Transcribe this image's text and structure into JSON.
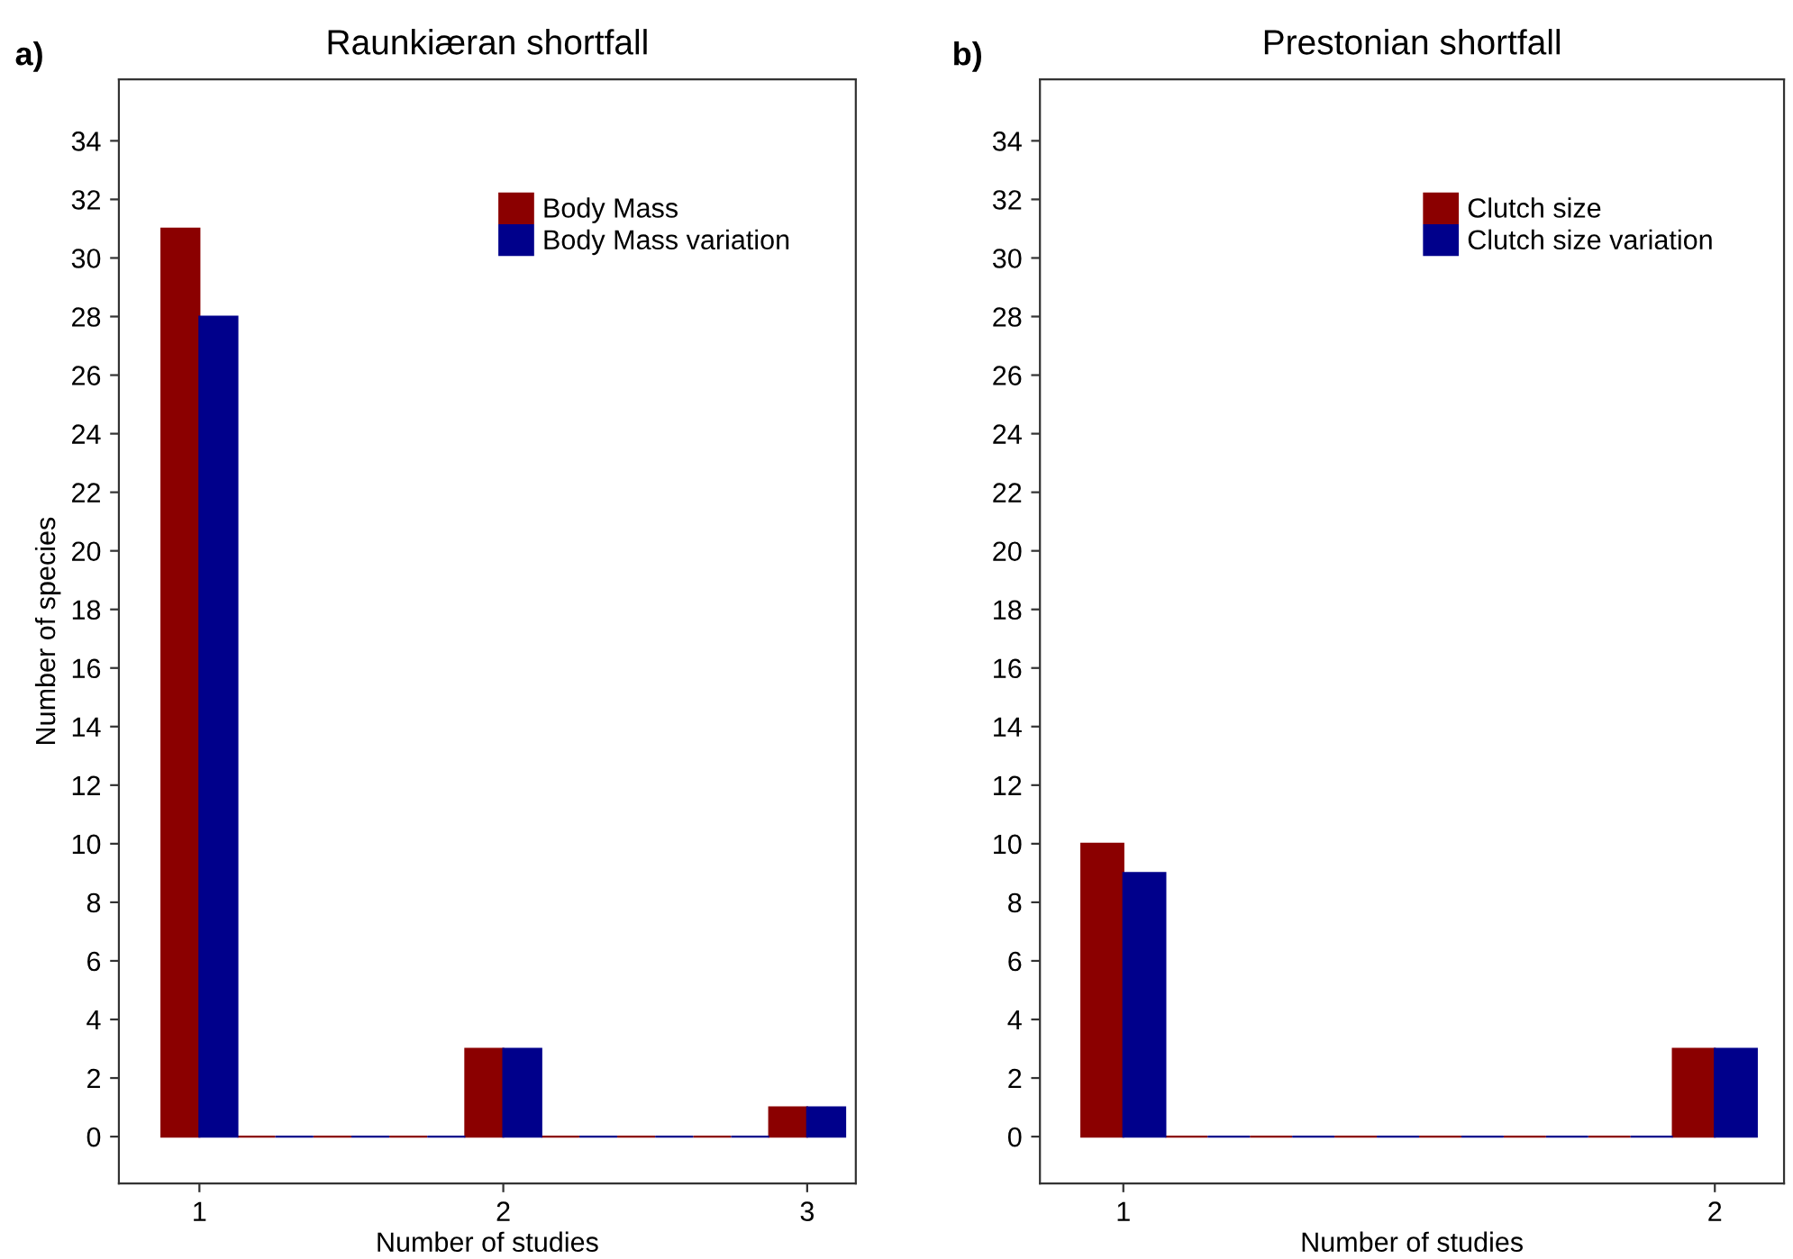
{
  "chart_data": [
    {
      "type": "histogram",
      "title": "Raunkiæran shortfall",
      "xlabel": "Number of studies",
      "ylabel": "Number of species",
      "annotations": [
        "a)"
      ],
      "bins": [
        0.875,
        1.125,
        1.375,
        1.625,
        1.875,
        2.125,
        2.375,
        2.625,
        2.875,
        3.125
      ],
      "series": [
        {
          "name": "Body Mass",
          "color": "#8b0000",
          "values": [
            31,
            0,
            0,
            0,
            3,
            0,
            0,
            0,
            1
          ]
        },
        {
          "name": "Body Mass variation",
          "color": "#00008b",
          "values": [
            28,
            0,
            0,
            0,
            3,
            0,
            0,
            0,
            1
          ]
        }
      ],
      "xlim": [
        0.735,
        3.16
      ],
      "xticks": [
        1,
        2,
        3
      ],
      "ylim": [
        -1.6,
        36.1
      ],
      "yticks": [
        0,
        2,
        4,
        6,
        8,
        10,
        12,
        14,
        16,
        18,
        20,
        22,
        24,
        26,
        28,
        30,
        32,
        34
      ],
      "grid": false,
      "legend": "top right"
    },
    {
      "type": "histogram",
      "title": "Prestonian shortfall",
      "xlabel": "Number of studies",
      "annotations": [
        "b)"
      ],
      "bins": [
        0.929,
        1.071,
        1.214,
        1.357,
        1.5,
        1.643,
        1.786,
        1.929,
        2.071
      ],
      "series": [
        {
          "name": "Clutch size",
          "color": "#8b0000",
          "values": [
            10,
            0,
            0,
            0,
            0,
            0,
            0,
            3
          ]
        },
        {
          "name": "Clutch size variation",
          "color": "#00008b",
          "values": [
            9,
            0,
            0,
            0,
            0,
            0,
            0,
            3
          ]
        }
      ],
      "xlim": [
        0.859,
        2.117
      ],
      "xticks": [
        1,
        2
      ],
      "ylim": [
        -1.6,
        36.1
      ],
      "yticks": [
        0,
        2,
        4,
        6,
        8,
        10,
        12,
        14,
        16,
        18,
        20,
        22,
        24,
        26,
        28,
        30,
        32,
        34
      ],
      "grid": false,
      "legend": "top right"
    }
  ]
}
